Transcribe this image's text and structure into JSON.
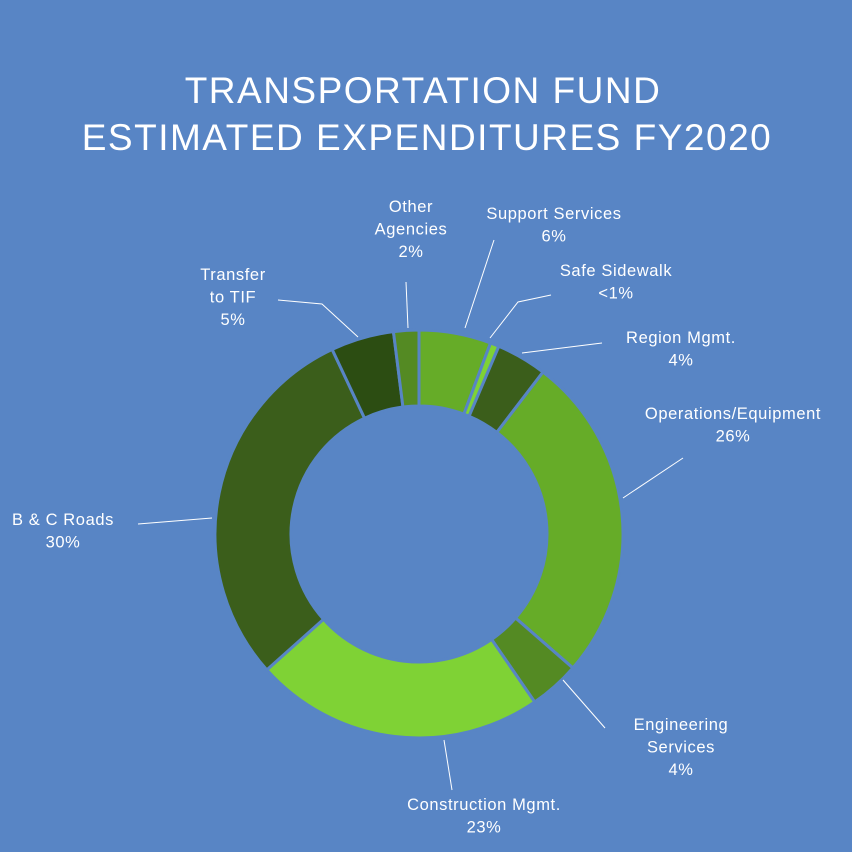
{
  "colors": {
    "background": "#5885c5",
    "text": "#ffffff",
    "separator": "#5885c5"
  },
  "chart_data": {
    "type": "pie",
    "variant": "donut",
    "title_lines": [
      "TRANSPORTATION FUND",
      "ESTIMATED EXPENDITURES FY2020"
    ],
    "unit": "%",
    "start": "12 o'clock",
    "direction": "clockwise",
    "slices": [
      {
        "label_lines": [
          "Support Services"
        ],
        "pct_label": "6%",
        "value": 5.7,
        "color": "#66ac28"
      },
      {
        "label_lines": [
          "Safe Sidewalk"
        ],
        "pct_label": "<1%",
        "value": 0.7,
        "color": "#7fd235"
      },
      {
        "label_lines": [
          "Region Mgmt."
        ],
        "pct_label": "4%",
        "value": 4.0,
        "color": "#3b5e1b"
      },
      {
        "label_lines": [
          "Operations/Equipment"
        ],
        "pct_label": "26%",
        "value": 26.0,
        "color": "#66ac28"
      },
      {
        "label_lines": [
          "Engineering",
          "Services"
        ],
        "pct_label": "4%",
        "value": 4.0,
        "color": "#548a23"
      },
      {
        "label_lines": [
          "Construction Mgmt."
        ],
        "pct_label": "23%",
        "value": 23.0,
        "color": "#7fd235"
      },
      {
        "label_lines": [
          "B & C Roads"
        ],
        "pct_label": "30%",
        "value": 29.6,
        "color": "#3b5e1b"
      },
      {
        "label_lines": [
          "Transfer",
          "to TIF"
        ],
        "pct_label": "5%",
        "value": 5.0,
        "color": "#2c4d12"
      },
      {
        "label_lines": [
          "Other",
          "Agencies"
        ],
        "pct_label": "2%",
        "value": 2.0,
        "color": "#548a23"
      }
    ]
  }
}
